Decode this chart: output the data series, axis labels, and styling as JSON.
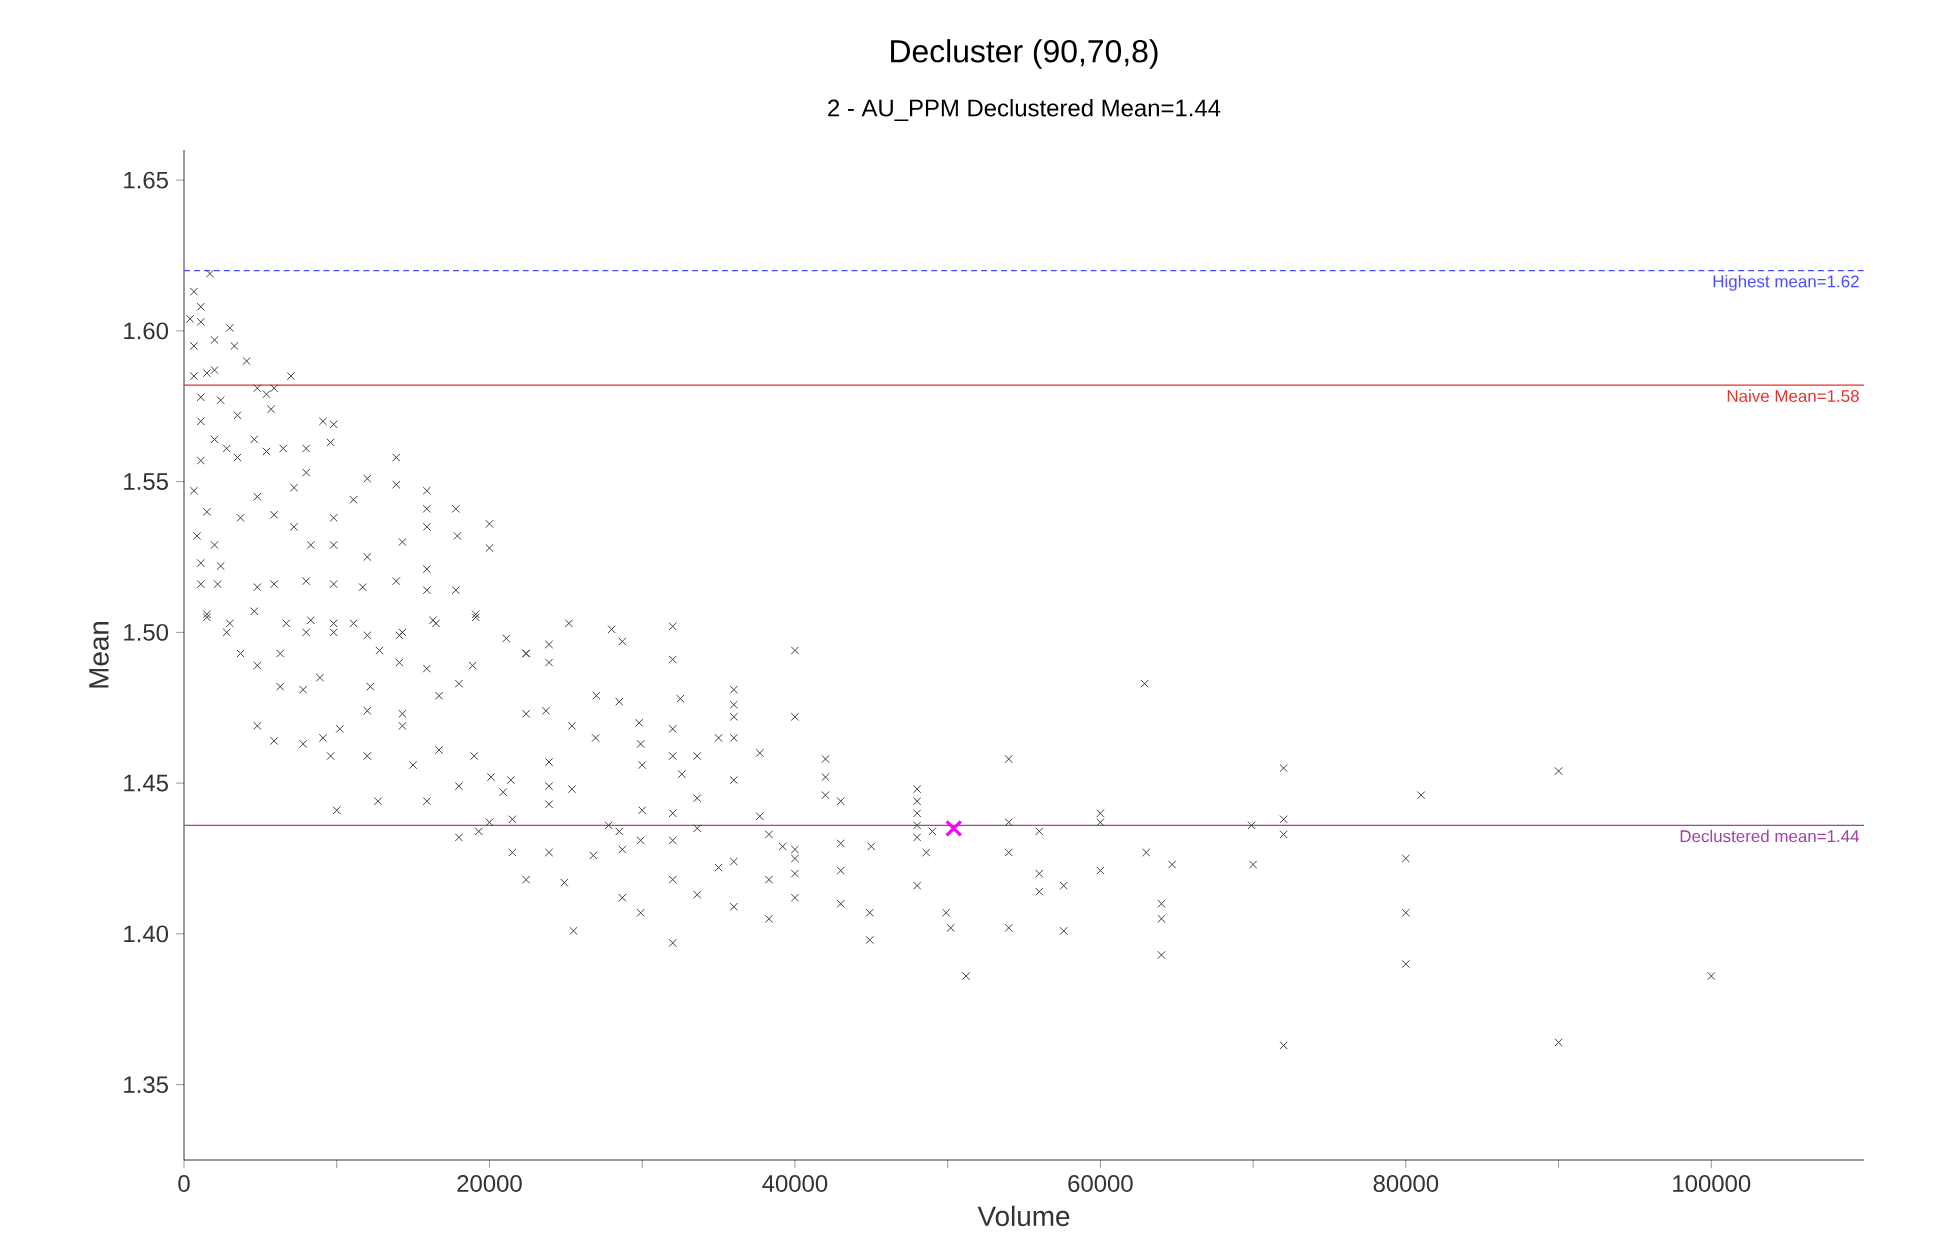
{
  "chart_data": {
    "type": "scatter",
    "title": "Decluster (90,70,8)",
    "subtitle": "2 - AU_PPM Declustered Mean=1.44",
    "xlabel": "Volume",
    "ylabel": "Mean",
    "xlim": [
      0,
      110000
    ],
    "ylim": [
      1.325,
      1.66
    ],
    "xticks": [
      0,
      {
        "value": 10000,
        "label": null
      },
      20000,
      {
        "value": 30000,
        "label": null
      },
      40000,
      {
        "value": 50000,
        "label": null
      },
      60000,
      {
        "value": 70000,
        "label": null
      },
      80000,
      {
        "value": 90000,
        "label": null
      },
      100000
    ],
    "yticks": [
      1.35,
      {
        "value": 1.4,
        "label": "1.40"
      },
      1.45,
      {
        "value": 1.5,
        "label": "1.50"
      },
      1.55,
      {
        "value": 1.6,
        "label": "1.60"
      },
      1.65
    ],
    "marker": "cross",
    "ref_lines": [
      {
        "axis": "y",
        "value": 1.62,
        "label": "Highest mean=1.62",
        "color": "#4a4aff",
        "line_style": "dashed"
      },
      {
        "axis": "y",
        "value": 1.582,
        "label": "Naive Mean=1.58",
        "color": "#e8302a"
      },
      {
        "axis": "y",
        "value": 1.436,
        "label": "Declustered mean=1.44",
        "color": "#a040a8"
      }
    ],
    "series": [
      {
        "color": "#404040",
        "x": [
          72000,
          90000,
          81000,
          69900,
          72000,
          72000,
          70000,
          80000,
          80000,
          80000,
          100000,
          72000,
          90000,
          32000,
          32000,
          32500,
          32000,
          32000,
          32600,
          33600,
          32000,
          33600,
          33600,
          32000,
          32000,
          33600,
          32000,
          36000,
          36000,
          36000,
          35000,
          36000,
          36000,
          37700,
          40000,
          40000,
          42000,
          42000,
          42000,
          43000,
          37700,
          38300,
          39200,
          40000,
          40000,
          35000,
          36000,
          40000,
          38300,
          40000,
          36000,
          38300,
          43000,
          43000,
          43000,
          45000,
          44900,
          44900,
          48000,
          48000,
          48000,
          48000,
          48000,
          48600,
          48000,
          49000,
          49900,
          50200,
          51200,
          54000,
          54000,
          54000,
          54000,
          56000,
          56000,
          56000,
          57600,
          57600,
          60000,
          60000,
          60000,
          62900,
          63000,
          64000,
          64000,
          64000,
          64700,
          1500,
          4800,
          5900,
          7800,
          9100,
          9600,
          10200,
          10000,
          12000,
          12700,
          12000,
          14300,
          14300,
          15000,
          15900,
          16700,
          18000,
          18000,
          19000,
          19300,
          20000,
          20100,
          20900,
          21400,
          21500,
          21500,
          22400,
          22400,
          23700,
          23900,
          23900,
          23900,
          23900,
          24900,
          25400,
          25500,
          26950,
          26800,
          27800,
          28500,
          28700,
          28700,
          29900,
          30000,
          29900,
          28000,
          28700,
          25200,
          27000,
          28500,
          29800,
          29900,
          30000,
          25400,
          22400,
          23900,
          18900,
          18000,
          16700,
          15900,
          14100,
          12800,
          12200,
          9800,
          8900,
          7800,
          6300,
          2800,
          3700,
          4800,
          6300,
          8000,
          11100,
          14300,
          16300,
          19100,
          1700,
          650,
          1100,
          400,
          1100,
          2000,
          3000,
          3300,
          4100,
          650,
          650,
          1500,
          2000,
          7000,
          4800,
          5900,
          1100,
          2400,
          5400,
          5700,
          3500,
          4600,
          1100,
          2000,
          2800,
          1100,
          3500,
          5400,
          6500,
          8000,
          9100,
          9800,
          9600,
          8000,
          650,
          1500,
          850,
          2000,
          1100,
          2400,
          3700,
          4800,
          5900,
          7200,
          7200,
          8300,
          9800,
          11100,
          12000,
          13900,
          13900,
          15900,
          15900,
          15900,
          17800,
          17900,
          20000,
          20000,
          15900,
          14300,
          12000,
          9800,
          1100,
          2200,
          4800,
          5900,
          8000,
          9800,
          11700,
          13900,
          15900,
          17800,
          1500,
          3000,
          4600,
          6700,
          8300,
          9800,
          12000,
          14100,
          16500,
          19100,
          21100,
          22400,
          23900
        ],
        "values": [
          1.455,
          1.454,
          1.446,
          1.436,
          1.438,
          1.433,
          1.423,
          1.425,
          1.407,
          1.39,
          1.386,
          1.363,
          1.364,
          1.502,
          1.491,
          1.478,
          1.468,
          1.459,
          1.453,
          1.459,
          1.44,
          1.445,
          1.435,
          1.431,
          1.418,
          1.413,
          1.397,
          1.481,
          1.476,
          1.472,
          1.465,
          1.465,
          1.451,
          1.46,
          1.494,
          1.472,
          1.458,
          1.452,
          1.446,
          1.444,
          1.439,
          1.433,
          1.429,
          1.428,
          1.425,
          1.422,
          1.424,
          1.42,
          1.418,
          1.412,
          1.409,
          1.405,
          1.43,
          1.421,
          1.41,
          1.429,
          1.407,
          1.398,
          1.448,
          1.444,
          1.44,
          1.436,
          1.432,
          1.427,
          1.416,
          1.434,
          1.407,
          1.402,
          1.386,
          1.458,
          1.437,
          1.427,
          1.402,
          1.434,
          1.42,
          1.414,
          1.416,
          1.401,
          1.44,
          1.437,
          1.421,
          1.483,
          1.427,
          1.41,
          1.405,
          1.393,
          1.423,
          1.505,
          1.469,
          1.464,
          1.463,
          1.465,
          1.459,
          1.468,
          1.441,
          1.459,
          1.444,
          1.474,
          1.473,
          1.469,
          1.456,
          1.444,
          1.461,
          1.449,
          1.432,
          1.459,
          1.434,
          1.437,
          1.452,
          1.447,
          1.451,
          1.438,
          1.427,
          1.418,
          1.473,
          1.474,
          1.457,
          1.449,
          1.443,
          1.427,
          1.417,
          1.448,
          1.401,
          1.465,
          1.426,
          1.436,
          1.434,
          1.428,
          1.412,
          1.407,
          1.441,
          1.431,
          1.501,
          1.497,
          1.503,
          1.479,
          1.477,
          1.47,
          1.463,
          1.456,
          1.469,
          1.493,
          1.49,
          1.489,
          1.483,
          1.479,
          1.488,
          1.49,
          1.494,
          1.482,
          1.5,
          1.485,
          1.481,
          1.482,
          1.5,
          1.493,
          1.489,
          1.493,
          1.5,
          1.503,
          1.5,
          1.504,
          1.505,
          1.619,
          1.613,
          1.608,
          1.604,
          1.603,
          1.597,
          1.601,
          1.595,
          1.59,
          1.595,
          1.585,
          1.586,
          1.587,
          1.585,
          1.581,
          1.581,
          1.578,
          1.577,
          1.579,
          1.574,
          1.572,
          1.564,
          1.57,
          1.564,
          1.561,
          1.557,
          1.558,
          1.56,
          1.561,
          1.561,
          1.57,
          1.569,
          1.563,
          1.553,
          1.547,
          1.54,
          1.532,
          1.529,
          1.523,
          1.522,
          1.538,
          1.545,
          1.539,
          1.548,
          1.535,
          1.529,
          1.538,
          1.544,
          1.551,
          1.558,
          1.549,
          1.547,
          1.541,
          1.535,
          1.541,
          1.532,
          1.536,
          1.528,
          1.521,
          1.53,
          1.525,
          1.529,
          1.516,
          1.516,
          1.515,
          1.516,
          1.517,
          1.516,
          1.515,
          1.517,
          1.514,
          1.514,
          1.506,
          1.503,
          1.507,
          1.503,
          1.504,
          1.503,
          1.499,
          1.499,
          1.503,
          1.506,
          1.498,
          1.493,
          1.496
        ]
      },
      {
        "color": "#ff00ff",
        "x": [
          50400
        ],
        "values": [
          1.435
        ]
      }
    ]
  }
}
